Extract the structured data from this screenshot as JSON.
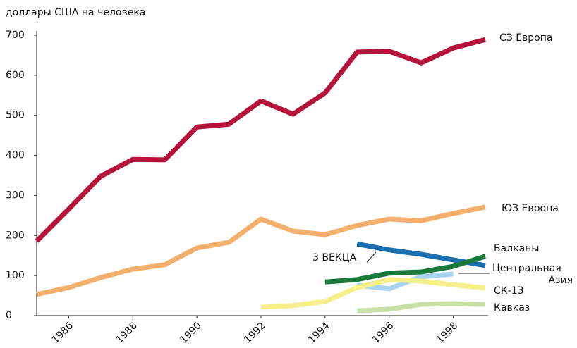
{
  "chart_data": {
    "type": "line",
    "y_axis_label": "доллары США на человека",
    "x": [
      1985,
      1986,
      1987,
      1988,
      1989,
      1990,
      1991,
      1992,
      1993,
      1994,
      1995,
      1996,
      1997,
      1998,
      1999
    ],
    "xlim": [
      1985,
      1999
    ],
    "xticks": [
      1986,
      1988,
      1990,
      1992,
      1994,
      1996,
      1998
    ],
    "ylim": [
      0,
      700
    ],
    "yticks": [
      0,
      100,
      200,
      300,
      400,
      500,
      600,
      700
    ],
    "series": [
      {
        "name": "СЗ Европа",
        "color": "#b5133b",
        "values": [
          186,
          266,
          348,
          390,
          389,
          471,
          478,
          536,
          503,
          556,
          658,
          660,
          631,
          668,
          689
        ]
      },
      {
        "name": "ЮЗ Европа",
        "color": "#f3b06c",
        "values": [
          53,
          70,
          95,
          116,
          127,
          169,
          183,
          241,
          211,
          202,
          225,
          241,
          237,
          255,
          271
        ]
      },
      {
        "name": "3 ВЕКЦА",
        "color": "#a9d4ef",
        "values": [
          null,
          null,
          null,
          null,
          null,
          null,
          null,
          null,
          null,
          null,
          76,
          67,
          97,
          104,
          null
        ]
      },
      {
        "name": "Центральная Азия",
        "color": "#1a6fb0",
        "values": [
          null,
          null,
          null,
          null,
          null,
          null,
          null,
          null,
          null,
          null,
          179,
          164,
          153,
          139,
          125
        ]
      },
      {
        "name": "Балканы",
        "color": "#1a7a3a",
        "values": [
          null,
          null,
          null,
          null,
          null,
          null,
          null,
          null,
          null,
          84,
          90,
          106,
          109,
          123,
          148
        ]
      },
      {
        "name": "СК-13",
        "color": "#f7ef8a",
        "values": [
          null,
          null,
          null,
          null,
          null,
          null,
          null,
          21,
          25,
          35,
          70,
          90,
          86,
          77,
          69
        ]
      },
      {
        "name": "Кавказ",
        "color": "#c8dfa6",
        "values": [
          null,
          null,
          null,
          null,
          null,
          null,
          null,
          null,
          null,
          null,
          12,
          16,
          28,
          30,
          28
        ]
      }
    ]
  }
}
